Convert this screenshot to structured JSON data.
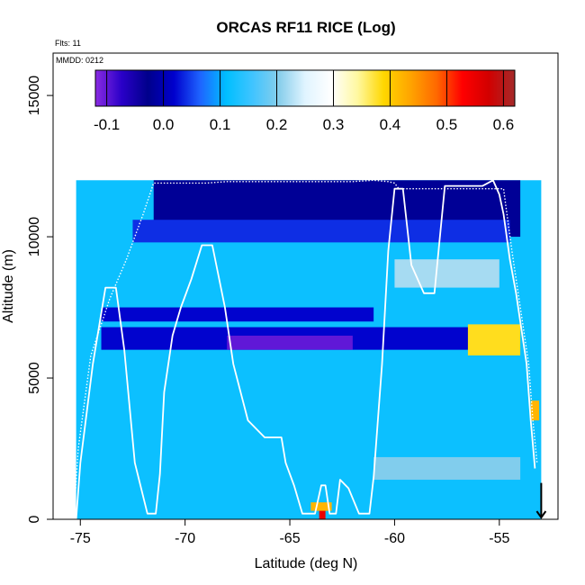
{
  "chart_data": {
    "type": "heatmap",
    "title": "ORCAS RF11 RICE (Log)",
    "annotations": {
      "flights": "Flts: 11",
      "mmdd": "MMDD: 0212"
    },
    "xlabel": "Latitude (deg N)",
    "ylabel": "Altitude (m)",
    "xlim": [
      -76.3,
      -52.2
    ],
    "ylim": [
      0,
      16500
    ],
    "xticks": [
      -75,
      -70,
      -65,
      -60,
      -55
    ],
    "yticks": [
      0,
      5000,
      10000,
      15000
    ],
    "xtick_labels": [
      "-75",
      "-70",
      "-65",
      "-60",
      "-55"
    ],
    "ytick_labels": [
      "0",
      "5000",
      "10000",
      "15000"
    ],
    "colorbar": {
      "range": [
        -0.12,
        0.62
      ],
      "ticks": [
        -0.1,
        0.0,
        0.1,
        0.2,
        0.3,
        0.4,
        0.5,
        0.6
      ],
      "tick_labels": [
        "-0.1",
        "0.0",
        "0.1",
        "0.2",
        "0.3",
        "0.4",
        "0.5",
        "0.6"
      ],
      "colors": [
        "#8a2be2",
        "#2a00c8",
        "#00008b",
        "#0000cd",
        "#1e64ff",
        "#00bfff",
        "#40c4ff",
        "#87ceeb",
        "#e0f4ff",
        "#ffffff",
        "#fff8a0",
        "#ffd700",
        "#ffa500",
        "#ff6a00",
        "#ff0000",
        "#d20000",
        "#a52a2a"
      ]
    },
    "heat_regions": [
      {
        "lat": [
          -75.2,
          -53.0
        ],
        "alt": [
          0,
          12000
        ],
        "value": 0.12,
        "label": "background"
      },
      {
        "lat": [
          -71.5,
          -54.0
        ],
        "alt": [
          10000,
          12000
        ],
        "value": -0.02,
        "label": "upper dark band"
      },
      {
        "lat": [
          -72.5,
          -54.5
        ],
        "alt": [
          9800,
          10600
        ],
        "value": 0.04,
        "label": "upper band"
      },
      {
        "lat": [
          -74.0,
          -61.0
        ],
        "alt": [
          7000,
          7500
        ],
        "value": 0.02,
        "label": "mid dark band"
      },
      {
        "lat": [
          -74.0,
          -55.0
        ],
        "alt": [
          6000,
          6800
        ],
        "value": 0.02,
        "label": "mid-lower dark band"
      },
      {
        "lat": [
          -68.0,
          -62.0
        ],
        "alt": [
          6000,
          6500
        ],
        "value": -0.1,
        "label": "purple patch"
      },
      {
        "lat": [
          -56.5,
          -54.0
        ],
        "alt": [
          5800,
          6900
        ],
        "value": 0.38,
        "label": "yellow patch"
      },
      {
        "lat": [
          -60.0,
          -55.0
        ],
        "alt": [
          8200,
          9200
        ],
        "value": 0.22,
        "label": "light patch"
      },
      {
        "lat": [
          -61.0,
          -54.0
        ],
        "alt": [
          1400,
          2200
        ],
        "value": 0.2,
        "label": "lower light band"
      },
      {
        "lat": [
          -63.6,
          -63.3
        ],
        "alt": [
          0,
          400
        ],
        "value": 0.55,
        "label": "red spot"
      },
      {
        "lat": [
          -64.0,
          -63.0
        ],
        "alt": [
          300,
          600
        ],
        "value": 0.42,
        "label": "orange spot"
      },
      {
        "lat": [
          -53.5,
          -53.1
        ],
        "alt": [
          3500,
          4200
        ],
        "value": 0.42,
        "label": "edge orange"
      }
    ],
    "series": [
      {
        "name": "flight track",
        "x": [
          -75.2,
          -75.0,
          -74.4,
          -73.8,
          -73.3,
          -72.9,
          -72.4,
          -71.8,
          -71.4,
          -71.2,
          -71.0,
          -70.6,
          -70.2,
          -69.7,
          -69.2,
          -68.7,
          -68.1,
          -67.7,
          -67.0,
          -66.2,
          -65.4,
          -65.2,
          -64.8,
          -64.4,
          -64.2,
          -64.0,
          -63.8,
          -63.5,
          -63.3,
          -63.1,
          -62.8,
          -62.6,
          -62.2,
          -61.7,
          -61.4,
          -61.2,
          -61.0,
          -60.6,
          -60.3,
          -60.0,
          -59.6,
          -59.2,
          -58.6,
          -58.1,
          -57.6,
          -57.2,
          -56.4,
          -55.8,
          -55.3,
          -55.0,
          -54.8,
          -54.5,
          -54.2,
          -53.9,
          -53.7,
          -53.5,
          -53.3
        ],
        "y": [
          0,
          2000,
          5500,
          8200,
          8200,
          6000,
          2000,
          200,
          200,
          1600,
          4500,
          6500,
          7500,
          8500,
          9700,
          9700,
          7500,
          5500,
          3500,
          2900,
          2900,
          2000,
          1200,
          200,
          200,
          200,
          200,
          1200,
          1200,
          200,
          200,
          1400,
          1100,
          200,
          200,
          200,
          1500,
          5500,
          9500,
          11700,
          11700,
          9000,
          8000,
          8000,
          11800,
          11800,
          11800,
          11800,
          12000,
          11500,
          10800,
          9200,
          8000,
          6500,
          5500,
          3500,
          1800
        ]
      },
      {
        "name": "dotted track",
        "x": [
          -75.3,
          -75.1,
          -74.5,
          -73.6,
          -72.8,
          -72.0,
          -71.5,
          -71.0,
          -70.0,
          -69.0,
          -68.0,
          -67.0,
          -66.0,
          -65.0,
          -64.0,
          -63.0,
          -62.0,
          -61.0,
          -60.3,
          -60.0,
          -59.8,
          -59.4,
          -58.8,
          -58.2,
          -57.6,
          -57.2,
          -56.5,
          -55.8,
          -55.2,
          -54.8,
          -54.4,
          -54.0,
          -53.6,
          -53.4,
          -53.2
        ],
        "y": [
          200,
          2500,
          5800,
          7800,
          9200,
          10800,
          11900,
          11900,
          11900,
          11900,
          11950,
          11950,
          11950,
          11950,
          11950,
          11950,
          11950,
          12000,
          11950,
          11900,
          11700,
          11700,
          11700,
          11700,
          11700,
          11700,
          11700,
          11700,
          11700,
          11700,
          9500,
          7500,
          5500,
          3500,
          2000
        ]
      }
    ],
    "marker": {
      "name": "down arrow",
      "lat": -53.0,
      "alt_top": 650,
      "alt_bottom": 0
    }
  }
}
